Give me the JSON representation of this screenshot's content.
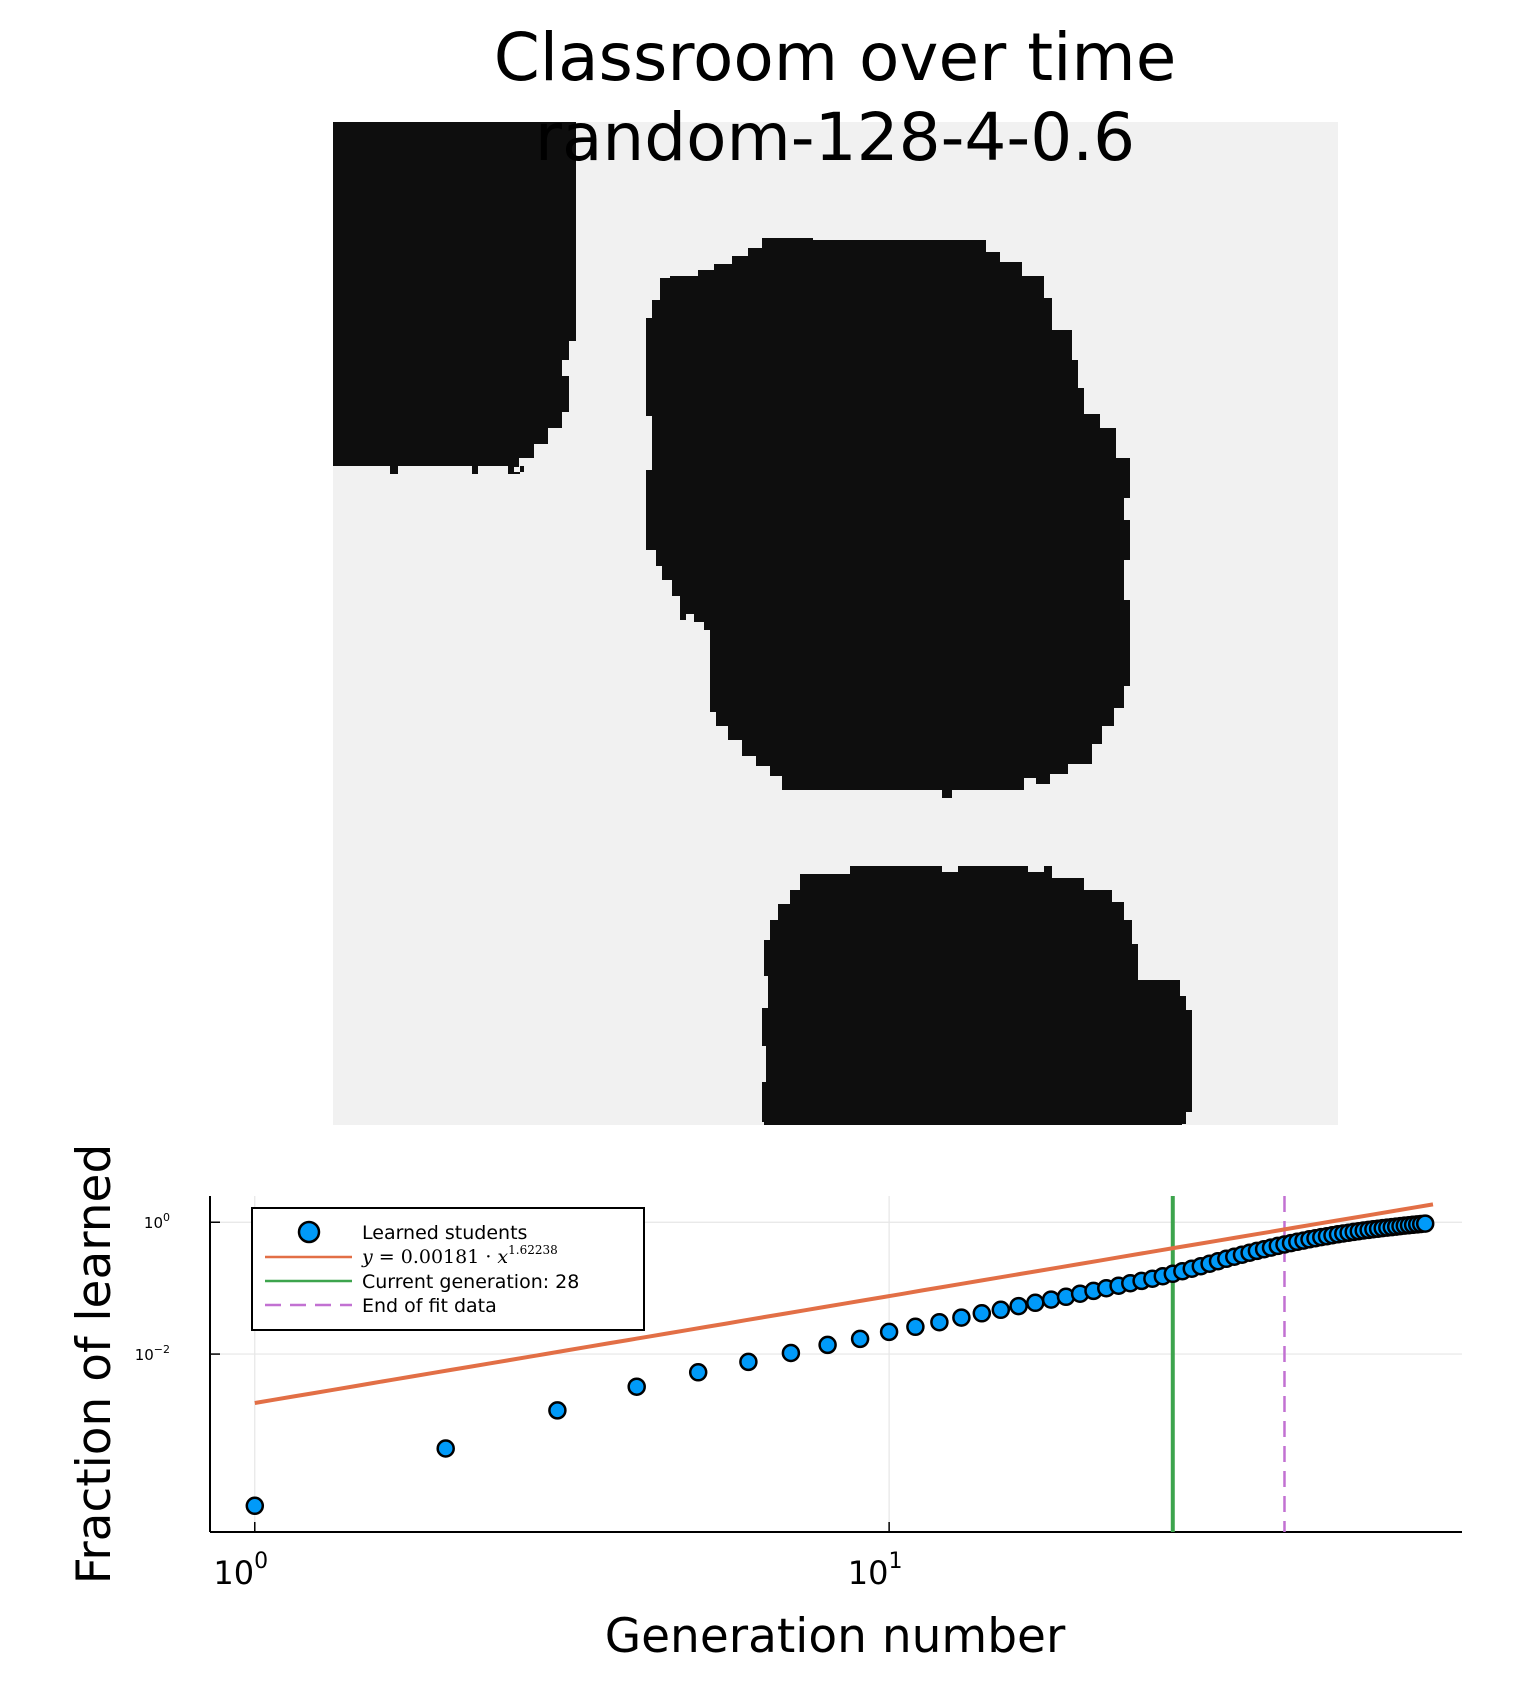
{
  "heatmap": {
    "title_line1": "Classroom over time",
    "title_line2": "random-128-4-0.6",
    "colors": {
      "learned": "#0e0e0e",
      "unlearned": "#f1f1f1"
    }
  },
  "chart_data": {
    "type": "scatter",
    "xscale": "log10",
    "yscale": "log10",
    "xlabel": "Generation number",
    "ylabel": "Fraction of learned",
    "xlim": [
      0.85,
      80
    ],
    "ylim": [
      2e-05,
      2.5
    ],
    "grid": true,
    "legend_position": "top-left",
    "x_ticks": [
      {
        "value": 1,
        "base": "10",
        "exp": "0"
      },
      {
        "value": 10,
        "base": "10",
        "exp": "1"
      }
    ],
    "y_ticks": [
      {
        "value": 0.01,
        "base": "10",
        "exp": "−2"
      },
      {
        "value": 1,
        "base": "10",
        "exp": "0"
      }
    ],
    "series": [
      {
        "name": "Learned students",
        "kind": "points",
        "color": "#009af9",
        "x": [
          1,
          2,
          3,
          4,
          5,
          6,
          7,
          8,
          9,
          10,
          11,
          12,
          13,
          14,
          15,
          16,
          17,
          18,
          19,
          20,
          21,
          22,
          23,
          24,
          25,
          26,
          27,
          28,
          29,
          30,
          31,
          32,
          33,
          34,
          35,
          36,
          37,
          38,
          39,
          40,
          41,
          42,
          43,
          44,
          45,
          46,
          47,
          48,
          49,
          50,
          51,
          52,
          53,
          54,
          55,
          56,
          57,
          58,
          59,
          60,
          61,
          62,
          63,
          64,
          65,
          66,
          67,
          68,
          69,
          70
        ],
        "y": [
          5e-05,
          0.00037,
          0.0014,
          0.0032,
          0.0053,
          0.0076,
          0.0104,
          0.0138,
          0.017,
          0.0217,
          0.0259,
          0.0305,
          0.0357,
          0.0415,
          0.047,
          0.0535,
          0.06,
          0.067,
          0.074,
          0.0825,
          0.091,
          0.1,
          0.109,
          0.119,
          0.129,
          0.139,
          0.152,
          0.165,
          0.181,
          0.197,
          0.215,
          0.235,
          0.256,
          0.279,
          0.3,
          0.322,
          0.345,
          0.368,
          0.39,
          0.413,
          0.437,
          0.46,
          0.482,
          0.505,
          0.527,
          0.55,
          0.572,
          0.594,
          0.615,
          0.636,
          0.656,
          0.675,
          0.694,
          0.713,
          0.731,
          0.749,
          0.766,
          0.783,
          0.799,
          0.815,
          0.83,
          0.845,
          0.86,
          0.874,
          0.888,
          0.901,
          0.914,
          0.927,
          0.94,
          0.952
        ]
      },
      {
        "name": "y = 0.00181 · x^1.62238",
        "kind": "fit",
        "color": "#e26f46",
        "coef": 0.00181,
        "exponent": 1.62238,
        "x_range": [
          1,
          72
        ]
      },
      {
        "name": "Current generation: 28",
        "kind": "vline",
        "color": "#3da44d",
        "x": 28
      },
      {
        "name": "End of fit data",
        "kind": "vline-dashed",
        "color": "#c271d2",
        "x": 42
      }
    ],
    "legend": {
      "entry1": "Learned students",
      "entry2_lhs": "y",
      "entry2_eq": " = 0.00181 · ",
      "entry2_var": "x",
      "entry2_exp": "1.62238",
      "entry3": "Current generation: 28",
      "entry4": "End of fit data"
    }
  }
}
